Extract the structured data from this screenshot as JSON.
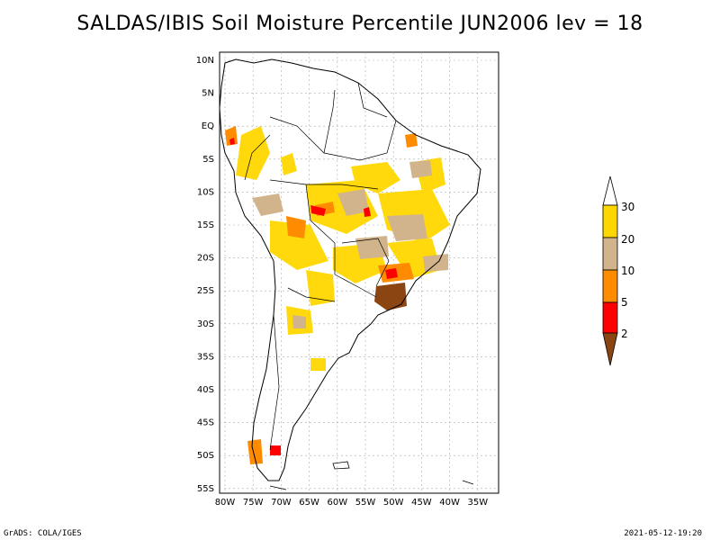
{
  "title": "SALDAS/IBIS Soil Moisture Percentile JUN2006 lev = 18",
  "map": {
    "lon_range": [
      -80,
      -32
    ],
    "lat_range": [
      -56,
      12
    ],
    "lat_ticks": [
      "10N",
      "5N",
      "EQ",
      "5S",
      "10S",
      "15S",
      "20S",
      "25S",
      "30S",
      "35S",
      "40S",
      "45S",
      "50S",
      "55S"
    ],
    "lon_ticks": [
      "80W",
      "75W",
      "70W",
      "65W",
      "60W",
      "55W",
      "50W",
      "45W",
      "40W",
      "35W"
    ],
    "grid": true
  },
  "legend": {
    "labels": [
      "30",
      "20",
      "10",
      "5",
      "2"
    ],
    "colors": {
      "above_30": "#ffffff",
      "20_30": "#ffd700",
      "10_20": "#d2b48c",
      "5_10": "#ff8c00",
      "2_5": "#ff0000",
      "below_2": "#8b4513"
    }
  },
  "footer": {
    "left": "GrADS: COLA/IGES",
    "right": "2021-05-12-19:20"
  }
}
